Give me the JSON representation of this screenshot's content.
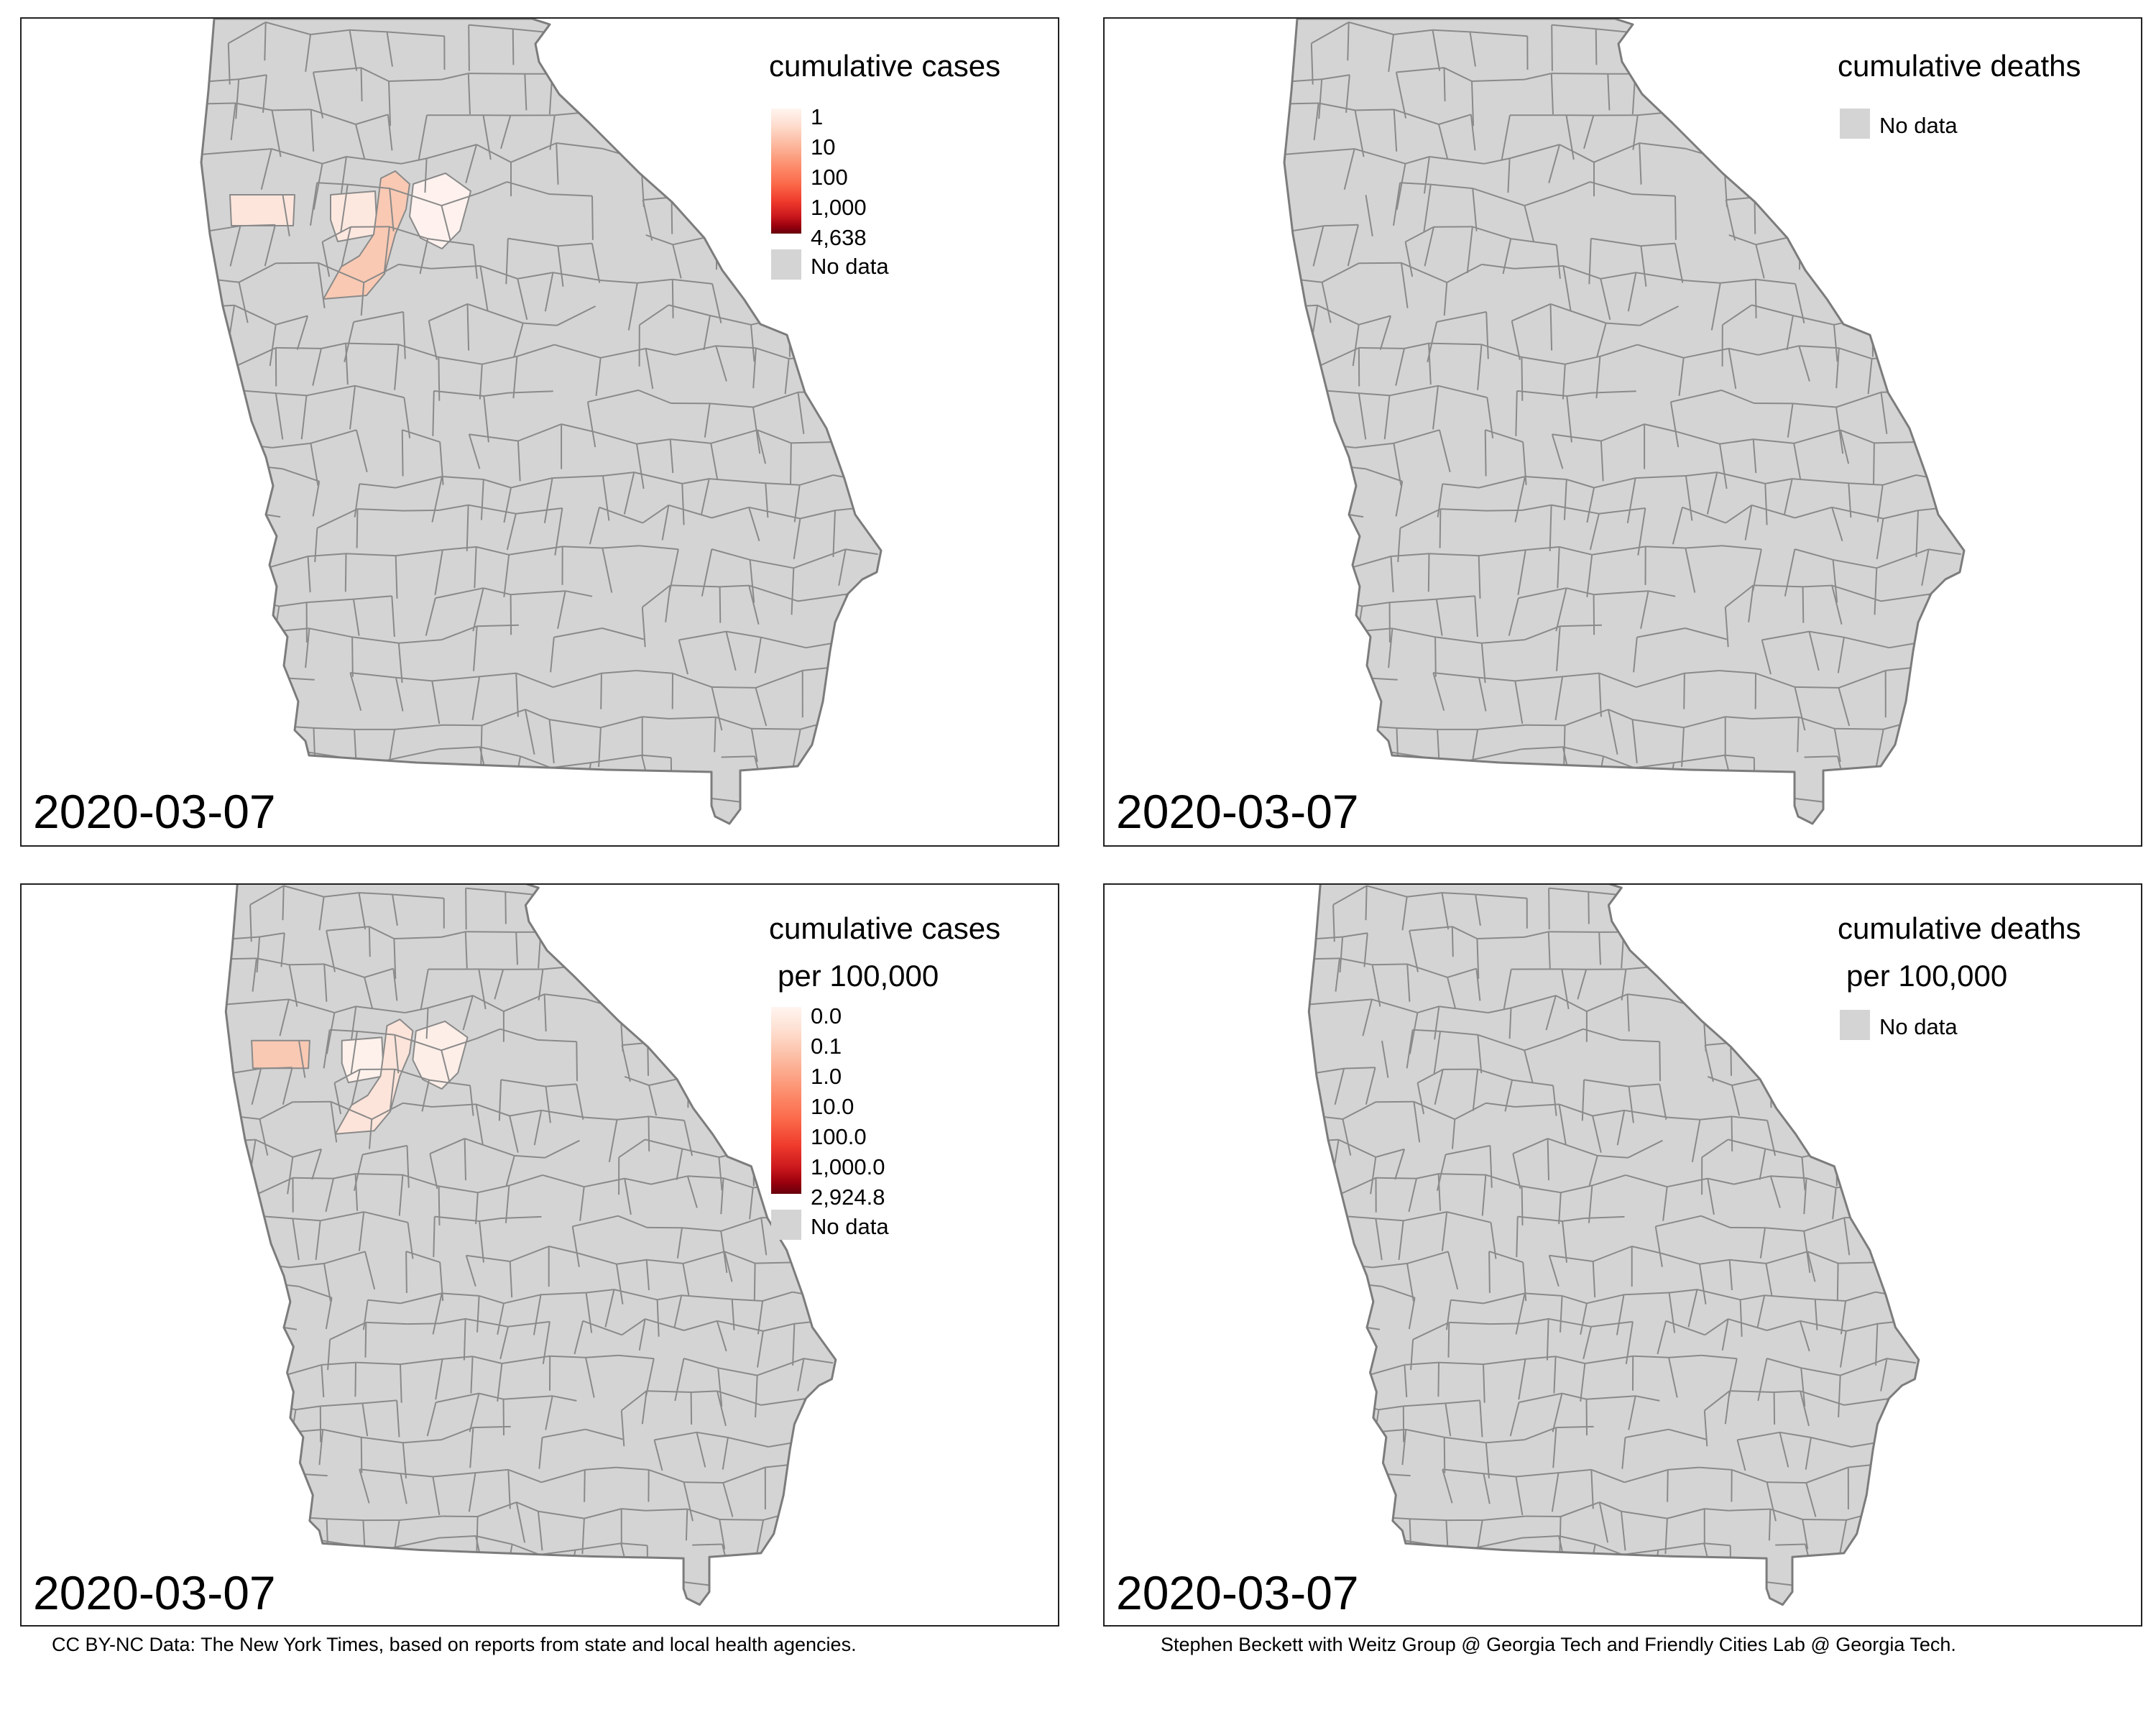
{
  "colors": {
    "no_data": "#d4d4d4",
    "county_border": "#8a8a8a",
    "scale_low": "#fff5f0",
    "scale_high": "#67000d"
  },
  "panels": {
    "cases": {
      "legend_title": "cumulative cases",
      "legend_labels": [
        "1",
        "10",
        "100",
        "1,000",
        "4,638"
      ],
      "no_data_label": "No data",
      "date": "2020-03-07"
    },
    "deaths": {
      "legend_title": "cumulative deaths",
      "no_data_label": "No data",
      "date": "2020-03-07"
    },
    "cases_per_100k": {
      "legend_title_line1": "cumulative cases",
      "legend_title_line2": "per 100,000",
      "legend_labels": [
        "0.0",
        "0.1",
        "1.0",
        "10.0",
        "100.0",
        "1,000.0",
        "2,924.8"
      ],
      "no_data_label": "No data",
      "date": "2020-03-07"
    },
    "deaths_per_100k": {
      "legend_title_line1": "cumulative deaths",
      "legend_title_line2": "per 100,000",
      "no_data_label": "No data",
      "date": "2020-03-07"
    }
  },
  "footer": {
    "left": "CC BY-NC Data: The New York Times, based on reports from state and local health agencies.",
    "right": "Stephen Beckett with Weitz Group @ Georgia Tech and Friendly Cities Lab @ Georgia Tech."
  }
}
